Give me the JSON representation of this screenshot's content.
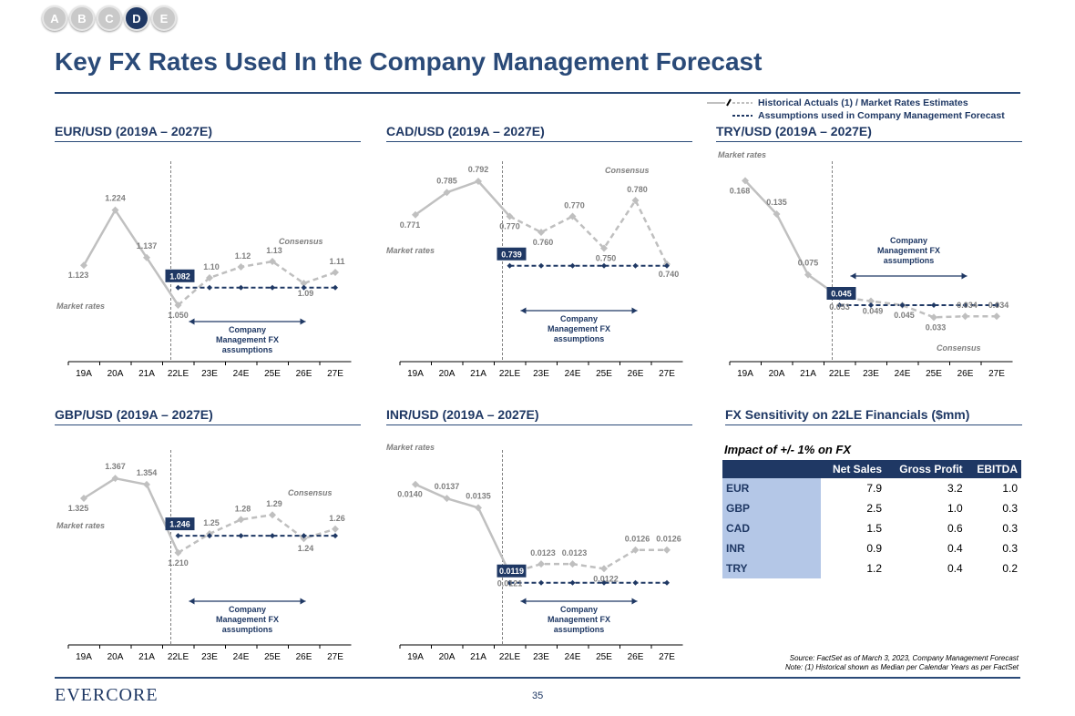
{
  "tabs": [
    "A",
    "B",
    "C",
    "D",
    "E"
  ],
  "active_tab": "D",
  "page_title": "Key FX Rates Used In the Company Management Forecast",
  "legend": {
    "historical": "Historical Actuals (1) / Market Rates Estimates",
    "assumptions": "Assumptions used in Company Management Forecast"
  },
  "labels": {
    "market_rates": "Market rates",
    "consensus": "Consensus",
    "assumptions_line1": "Company",
    "assumptions_line2": "Management FX",
    "assumptions_line3": "assumptions"
  },
  "colors": {
    "navy": "#1f3864",
    "gray_line": "#c0c0c0",
    "gray_dash": "#bfbfbf",
    "light_blue": "#b4c7e7"
  },
  "chart_data": [
    {
      "type": "line",
      "title": "EUR/USD (2019A – 2027E)",
      "categories": [
        "19A",
        "20A",
        "21A",
        "22LE",
        "23E",
        "24E",
        "25E",
        "26E",
        "27E"
      ],
      "series": [
        {
          "name": "Historical Actuals",
          "values": [
            1.123,
            1.224,
            1.137,
            1.05,
            null,
            null,
            null,
            null,
            null
          ],
          "labels": [
            "1.123",
            "1.224",
            "1.137",
            "1.050",
            "",
            "",
            "",
            "",
            ""
          ]
        },
        {
          "name": "Market Rates Estimates",
          "values": [
            null,
            null,
            null,
            1.05,
            1.1,
            1.12,
            1.13,
            1.09,
            1.11
          ],
          "labels": [
            "",
            "",
            "",
            "",
            "1.10",
            "1.12",
            "1.13",
            "1.09",
            "1.11"
          ]
        },
        {
          "name": "Company Management Forecast",
          "values": [
            null,
            null,
            null,
            1.082,
            1.082,
            1.082,
            1.082,
            1.082,
            1.082
          ],
          "labels": [
            "",
            "",
            "",
            "1.082",
            "",
            "",
            "",
            "",
            ""
          ]
        }
      ],
      "ylim": [
        1.0,
        1.3
      ]
    },
    {
      "type": "line",
      "title": "CAD/USD (2019A – 2027E)",
      "categories": [
        "19A",
        "20A",
        "21A",
        "22LE",
        "23E",
        "24E",
        "25E",
        "26E",
        "27E"
      ],
      "series": [
        {
          "name": "Historical Actuals",
          "values": [
            0.771,
            0.785,
            0.792,
            0.77,
            null,
            null,
            null,
            null,
            null
          ],
          "labels": [
            "0.771",
            "0.785",
            "0.792",
            "0.770",
            "",
            "",
            "",
            "",
            ""
          ]
        },
        {
          "name": "Market Rates Estimates",
          "values": [
            null,
            null,
            null,
            0.77,
            0.76,
            0.77,
            0.75,
            0.78,
            0.74
          ],
          "labels": [
            "",
            "",
            "",
            "",
            "0.760",
            "0.770",
            "0.750",
            "0.780",
            "0.740"
          ]
        },
        {
          "name": "Company Management Forecast",
          "values": [
            null,
            null,
            null,
            0.739,
            0.739,
            0.739,
            0.739,
            0.739,
            0.739
          ],
          "labels": [
            "",
            "",
            "",
            "0.739",
            "",
            "",
            "",
            "",
            ""
          ]
        }
      ],
      "ylim": [
        0.72,
        0.8
      ]
    },
    {
      "type": "line",
      "title": "TRY/USD (2019A – 2027E)",
      "categories": [
        "19A",
        "20A",
        "21A",
        "22LE",
        "23E",
        "24E",
        "25E",
        "26E",
        "27E"
      ],
      "series": [
        {
          "name": "Historical Actuals",
          "values": [
            0.168,
            0.135,
            0.075,
            0.053,
            null,
            null,
            null,
            null,
            null
          ],
          "labels": [
            "0.168",
            "0.135",
            "0.075",
            "0.053",
            "",
            "",
            "",
            "",
            ""
          ]
        },
        {
          "name": "Market Rates Estimates",
          "values": [
            null,
            null,
            null,
            0.053,
            0.049,
            0.045,
            0.033,
            0.034,
            0.034
          ],
          "labels": [
            "",
            "",
            "",
            "",
            "0.049",
            "0.045",
            "0.033",
            "0.034",
            "0.034"
          ]
        },
        {
          "name": "Company Management Forecast",
          "values": [
            null,
            null,
            null,
            0.045,
            0.045,
            0.045,
            0.045,
            0.045,
            0.045
          ],
          "labels": [
            "",
            "",
            "",
            "0.045",
            "",
            "",
            "",
            "",
            ""
          ]
        }
      ],
      "ylim": [
        0.0,
        0.18
      ]
    },
    {
      "type": "line",
      "title": "GBP/USD (2019A – 2027E)",
      "categories": [
        "19A",
        "20A",
        "21A",
        "22LE",
        "23E",
        "24E",
        "25E",
        "26E",
        "27E"
      ],
      "series": [
        {
          "name": "Historical Actuals",
          "values": [
            1.325,
            1.367,
            1.354,
            1.21,
            null,
            null,
            null,
            null,
            null
          ],
          "labels": [
            "1.325",
            "1.367",
            "1.354",
            "1.210",
            "",
            "",
            "",
            "",
            ""
          ]
        },
        {
          "name": "Market Rates Estimates",
          "values": [
            null,
            null,
            null,
            1.21,
            1.25,
            1.28,
            1.29,
            1.24,
            1.26
          ],
          "labels": [
            "",
            "",
            "",
            "",
            "1.25",
            "1.28",
            "1.29",
            "1.24",
            "1.26"
          ]
        },
        {
          "name": "Company Management Forecast",
          "values": [
            null,
            null,
            null,
            1.246,
            1.246,
            1.246,
            1.246,
            1.246,
            1.246
          ],
          "labels": [
            "",
            "",
            "",
            "1.246",
            "",
            "",
            "",
            "",
            ""
          ]
        }
      ],
      "ylim": [
        1.15,
        1.4
      ]
    },
    {
      "type": "line",
      "title": "INR/USD (2019A – 2027E)",
      "categories": [
        "19A",
        "20A",
        "21A",
        "22LE",
        "23E",
        "24E",
        "25E",
        "26E",
        "27E"
      ],
      "series": [
        {
          "name": "Historical Actuals",
          "values": [
            0.014,
            0.0137,
            0.0135,
            0.0121,
            null,
            null,
            null,
            null,
            null
          ],
          "labels": [
            "0.0140",
            "0.0137",
            "0.0135",
            "0.0121",
            "",
            "",
            "",
            "",
            ""
          ]
        },
        {
          "name": "Market Rates Estimates",
          "values": [
            null,
            null,
            null,
            0.0121,
            0.0123,
            0.0123,
            0.0122,
            0.0126,
            0.0126
          ],
          "labels": [
            "",
            "",
            "",
            "",
            "0.0123",
            "0.0123",
            "0.0122",
            "0.0126",
            "0.0126"
          ]
        },
        {
          "name": "Company Management Forecast",
          "values": [
            null,
            null,
            null,
            0.0119,
            0.0119,
            0.0119,
            0.0119,
            0.0119,
            0.0119
          ],
          "labels": [
            "",
            "",
            "",
            "0.0119",
            "",
            "",
            "",
            "",
            ""
          ]
        }
      ],
      "ylim": [
        0.011,
        0.0145
      ]
    }
  ],
  "sensitivity": {
    "title": "FX Sensitivity on 22LE Financials ($mm)",
    "subtitle": "Impact of +/- 1% on FX",
    "headers": [
      "",
      "Net Sales",
      "Gross Profit",
      "EBITDA"
    ],
    "rows": [
      [
        "EUR",
        "7.9",
        "3.2",
        "1.0"
      ],
      [
        "GBP",
        "2.5",
        "1.0",
        "0.3"
      ],
      [
        "CAD",
        "1.5",
        "0.6",
        "0.3"
      ],
      [
        "INR",
        "0.9",
        "0.4",
        "0.3"
      ],
      [
        "TRY",
        "1.2",
        "0.4",
        "0.2"
      ]
    ]
  },
  "source_line1": "Source: FactSet as of March 3, 2023, Company Management Forecast",
  "source_line2": "Note: (1) Historical shown as Median per Calendar Years as per FactSet",
  "footer_logo": "EVERCORE",
  "page_number": "35"
}
